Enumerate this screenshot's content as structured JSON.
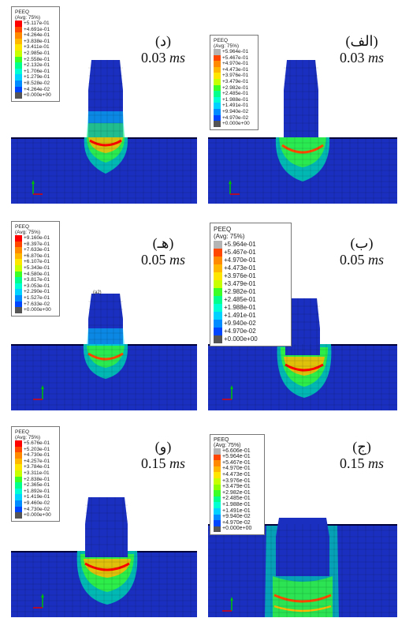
{
  "legend_title": "PEEQ",
  "legend_subtitle": "(Avg: 75%)",
  "colors": [
    "#b4b4b4",
    "#ff0000",
    "#ff4700",
    "#ff8a00",
    "#ffb700",
    "#ffe600",
    "#c8ff00",
    "#8cff00",
    "#3cff28",
    "#00ff8c",
    "#00ffd2",
    "#00d2ff",
    "#008cff",
    "#0046ff",
    "#0000ff",
    "#555555"
  ],
  "unit": "ms",
  "panels": [
    {
      "id": "d",
      "letter": "(د)",
      "time": "0.03",
      "legend": [
        "+5.117e-01",
        "+4.691e-01",
        "+4.264e-01",
        "+3.838e-01",
        "+3.411e-01",
        "+2.985e-01",
        "+2.558e-01",
        "+2.132e-01",
        "+1.706e-01",
        "+1.279e-01",
        "+8.528e-02",
        "+4.264e-02",
        "+0.000e+00"
      ]
    },
    {
      "id": "alef",
      "letter": "(الف)",
      "time": "0.03",
      "legend": [
        "+5.964e-01",
        "+5.467e-01",
        "+4.970e-01",
        "+4.473e-01",
        "+3.976e-01",
        "+3.479e-01",
        "+2.982e-01",
        "+2.485e-01",
        "+1.988e-01",
        "+1.491e-01",
        "+9.940e-02",
        "+4.970e-02",
        "+0.000e+00"
      ]
    },
    {
      "id": "he",
      "letter": "(هـ)",
      "time": "0.05",
      "legend": [
        "+9.160e-01",
        "+8.397e-01",
        "+7.633e-01",
        "+6.870e-01",
        "+6.107e-01",
        "+5.343e-01",
        "+4.580e-01",
        "+3.817e-01",
        "+3.053e-01",
        "+2.290e-01",
        "+1.527e-01",
        "+7.633e-02",
        "+0.000e+00"
      ],
      "tag": "(a2)"
    },
    {
      "id": "be",
      "letter": "(ب)",
      "time": "0.05",
      "legend": [
        "+5.964e-01",
        "+5.467e-01",
        "+4.970e-01",
        "+4.473e-01",
        "+3.976e-01",
        "+3.479e-01",
        "+2.982e-01",
        "+2.485e-01",
        "+1.988e-01",
        "+1.491e-01",
        "+9.940e-02",
        "+4.970e-02",
        "+0.000e+00"
      ]
    },
    {
      "id": "vav",
      "letter": "(و)",
      "time": "0.15",
      "legend": [
        "+5.676e-01",
        "+5.203e-01",
        "+4.730e-01",
        "+4.257e-01",
        "+3.784e-01",
        "+3.311e-01",
        "+2.838e-01",
        "+2.365e-01",
        "+1.892e-01",
        "+1.419e-01",
        "+9.460e-02",
        "+4.730e-02",
        "+0.000e+00"
      ]
    },
    {
      "id": "jim",
      "letter": "(ج)",
      "time": "0.15",
      "legend": [
        "+6.606e-01",
        "+5.964e-01",
        "+5.467e-01",
        "+4.970e-01",
        "+4.473e-01",
        "+3.976e-01",
        "+3.479e-01",
        "+2.982e-01",
        "+2.485e-01",
        "+1.988e-01",
        "+1.491e-01",
        "+9.940e-02",
        "+4.970e-02",
        "+0.000e+00"
      ]
    }
  ]
}
